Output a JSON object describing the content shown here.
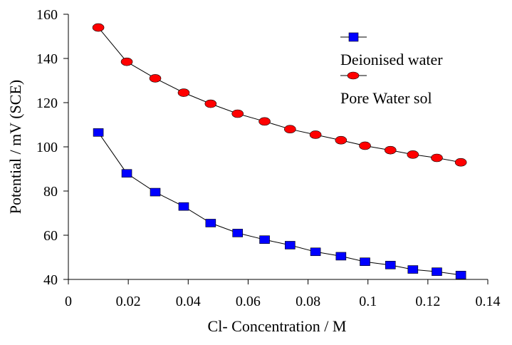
{
  "chart_data": {
    "type": "line",
    "xlabel": "Cl- Concentration / M",
    "ylabel": "Potential / mV (SCE)",
    "xlim": [
      0,
      0.14
    ],
    "ylim": [
      40,
      160
    ],
    "xticks": [
      0,
      0.02,
      0.04,
      0.06,
      0.08,
      0.1,
      0.12,
      0.14
    ],
    "xtick_labels": [
      "0",
      "0.02",
      "0.04",
      "0.06",
      "0.08",
      "0.1",
      "0.12",
      "0.14"
    ],
    "yticks": [
      40,
      60,
      80,
      100,
      120,
      140,
      160
    ],
    "ytick_labels": [
      "40",
      "60",
      "80",
      "100",
      "120",
      "140",
      "160"
    ],
    "grid": false,
    "legend_position": "top-right",
    "series": [
      {
        "name": "Deionised water",
        "marker": "square",
        "color": "#0000ff",
        "x": [
          0.01,
          0.0195,
          0.029,
          0.0385,
          0.0475,
          0.0565,
          0.0655,
          0.074,
          0.0825,
          0.091,
          0.099,
          0.1075,
          0.115,
          0.123,
          0.131
        ],
        "y": [
          106.5,
          88,
          79.5,
          73,
          65.5,
          61,
          58,
          55.5,
          52.5,
          50.5,
          48,
          46.5,
          44.5,
          43.5,
          42
        ]
      },
      {
        "name": "Pore Water sol",
        "marker": "circle",
        "color": "#ff0000",
        "x": [
          0.01,
          0.0195,
          0.029,
          0.0385,
          0.0475,
          0.0565,
          0.0655,
          0.074,
          0.0825,
          0.091,
          0.099,
          0.1075,
          0.115,
          0.123,
          0.131
        ],
        "y": [
          154,
          138.5,
          131,
          124.5,
          119.5,
          115,
          111.5,
          108,
          105.5,
          103,
          100.5,
          98.5,
          96.5,
          95,
          93
        ]
      }
    ]
  }
}
